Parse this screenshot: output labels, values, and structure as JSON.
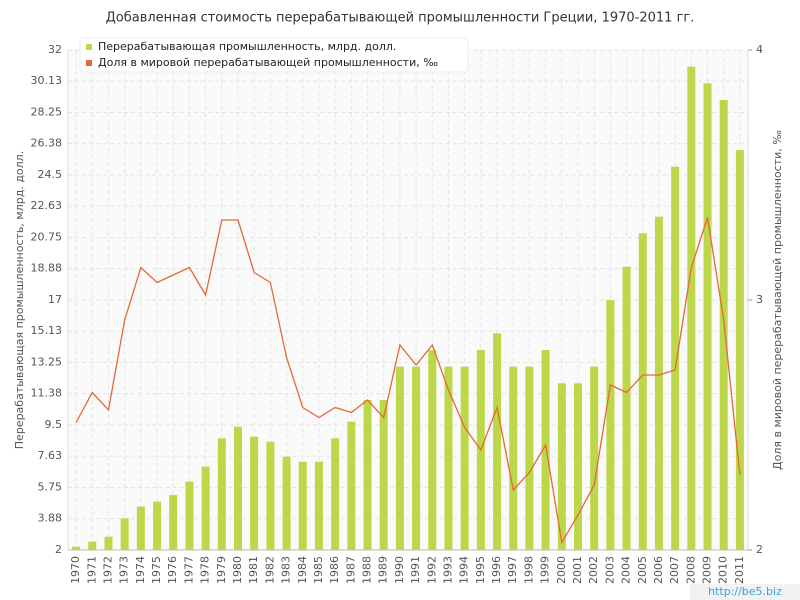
{
  "chart_data": {
    "type": "bar_line",
    "title": "Добавленная стоимость перерабатывающей промышленности Греции, 1970-2011 гг.",
    "ylabel": "Перерабатывающая промышленность, млрд. долл.",
    "y2label": "Доля в мировой перерабатывающей промышленности, ‰",
    "watermark": "http://be5.biz",
    "categories": [
      "1970",
      "1971",
      "1972",
      "1973",
      "1974",
      "1975",
      "1976",
      "1977",
      "1978",
      "1979",
      "1980",
      "1981",
      "1982",
      "1983",
      "1984",
      "1985",
      "1986",
      "1987",
      "1988",
      "1989",
      "1990",
      "1991",
      "1992",
      "1993",
      "1994",
      "1995",
      "1996",
      "1997",
      "1998",
      "1999",
      "2000",
      "2001",
      "2002",
      "2003",
      "2004",
      "2005",
      "2006",
      "2007",
      "2008",
      "2009",
      "2010",
      "2011"
    ],
    "series": [
      {
        "name": "Перерабатывающая промышленность, млрд. долл.",
        "type": "bar",
        "color": "#bcd84a",
        "values": [
          2.2,
          2.5,
          2.8,
          3.9,
          4.6,
          4.9,
          5.3,
          6.1,
          7.0,
          8.7,
          9.4,
          8.8,
          8.5,
          7.6,
          7.3,
          7.3,
          8.7,
          9.7,
          11.0,
          11.0,
          13.0,
          13.0,
          14.0,
          13.0,
          13.0,
          14.0,
          15.0,
          13.0,
          13.0,
          14.0,
          12.0,
          12.0,
          13.0,
          17.0,
          19.0,
          21.0,
          22.0,
          25.0,
          31.0,
          30.0,
          29.0,
          26.0
        ]
      },
      {
        "name": "Доля в мировой перерабатывающей промышленности, ‰",
        "type": "line",
        "color": "#e2693a",
        "axis": "y2",
        "values": [
          2.51,
          2.63,
          2.56,
          2.92,
          3.13,
          3.07,
          3.1,
          3.13,
          3.02,
          3.32,
          3.32,
          3.11,
          3.07,
          2.77,
          2.57,
          2.53,
          2.57,
          2.55,
          2.6,
          2.53,
          2.82,
          2.74,
          2.82,
          2.64,
          2.49,
          2.4,
          2.57,
          2.24,
          2.31,
          2.42,
          2.03,
          2.14,
          2.26,
          2.66,
          2.63,
          2.7,
          2.7,
          2.72,
          3.13,
          3.33,
          2.92,
          2.3
        ]
      }
    ],
    "ylim": [
      2,
      32
    ],
    "yticks": [
      2,
      3.88,
      5.75,
      7.63,
      9.5,
      11.38,
      13.25,
      15.13,
      17,
      18.88,
      20.75,
      22.63,
      24.5,
      26.38,
      28.25,
      30.13,
      32
    ],
    "y2lim": [
      2,
      4
    ],
    "y2ticks": [
      2,
      3,
      4
    ],
    "grid": true,
    "legend": "top-left"
  }
}
